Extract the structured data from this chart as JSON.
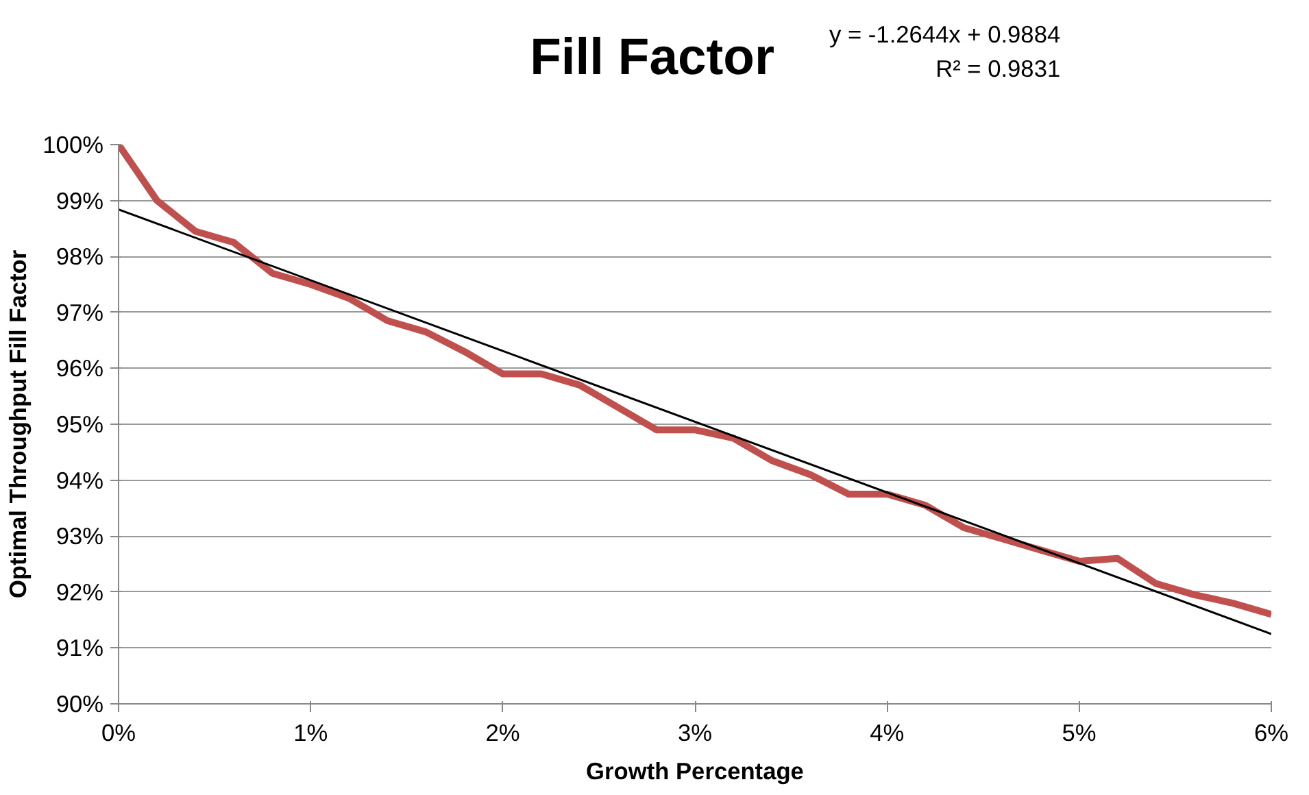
{
  "chart_data": {
    "type": "line",
    "title": "Fill Factor",
    "xlabel": "Growth Percentage",
    "ylabel": "Optimal Throughput Fill Factor",
    "annotations": [
      "y = -1.2644x + 0.9884",
      "R² = 0.9831"
    ],
    "x": [
      0,
      0.002,
      0.004,
      0.006,
      0.008,
      0.01,
      0.012,
      0.014,
      0.016,
      0.018,
      0.02,
      0.022,
      0.024,
      0.026,
      0.028,
      0.03,
      0.032,
      0.034,
      0.036,
      0.038,
      0.04,
      0.042,
      0.044,
      0.046,
      0.048,
      0.05,
      0.052,
      0.054,
      0.056,
      0.058,
      0.06
    ],
    "series": [
      {
        "color": "#c0504d",
        "values": [
          1.0,
          0.99,
          0.9845,
          0.9825,
          0.977,
          0.975,
          0.9725,
          0.9685,
          0.9665,
          0.963,
          0.959,
          0.959,
          0.957,
          0.953,
          0.949,
          0.949,
          0.9475,
          0.9435,
          0.941,
          0.9375,
          0.9375,
          0.9355,
          0.9315,
          0.9295,
          0.9275,
          0.9255,
          0.926,
          0.9215,
          0.9195,
          0.918,
          0.916
        ]
      },
      {
        "type": "line",
        "color": "#000000",
        "x": [
          0,
          0.06
        ],
        "values": [
          0.9884,
          0.9125
        ]
      }
    ],
    "xlim": [
      0,
      0.06
    ],
    "ylim": [
      0.9,
      1.0
    ],
    "xticks": [
      {
        "value": 0,
        "label": "0%"
      },
      {
        "value": 0.01,
        "label": "1%"
      },
      {
        "value": 0.02,
        "label": "2%"
      },
      {
        "value": 0.03,
        "label": "3%"
      },
      {
        "value": 0.04,
        "label": "4%"
      },
      {
        "value": 0.05,
        "label": "5%"
      },
      {
        "value": 0.06,
        "label": "6%"
      }
    ],
    "yticks": [
      {
        "value": 0.9,
        "label": "90%"
      },
      {
        "value": 0.91,
        "label": "91%"
      },
      {
        "value": 0.92,
        "label": "92%"
      },
      {
        "value": 0.93,
        "label": "93%"
      },
      {
        "value": 0.94,
        "label": "94%"
      },
      {
        "value": 0.95,
        "label": "95%"
      },
      {
        "value": 0.96,
        "label": "96%"
      },
      {
        "value": 0.97,
        "label": "97%"
      },
      {
        "value": 0.98,
        "label": "98%"
      },
      {
        "value": 0.99,
        "label": "99%"
      },
      {
        "value": 1.0,
        "label": "100%"
      }
    ],
    "grid": "y"
  }
}
